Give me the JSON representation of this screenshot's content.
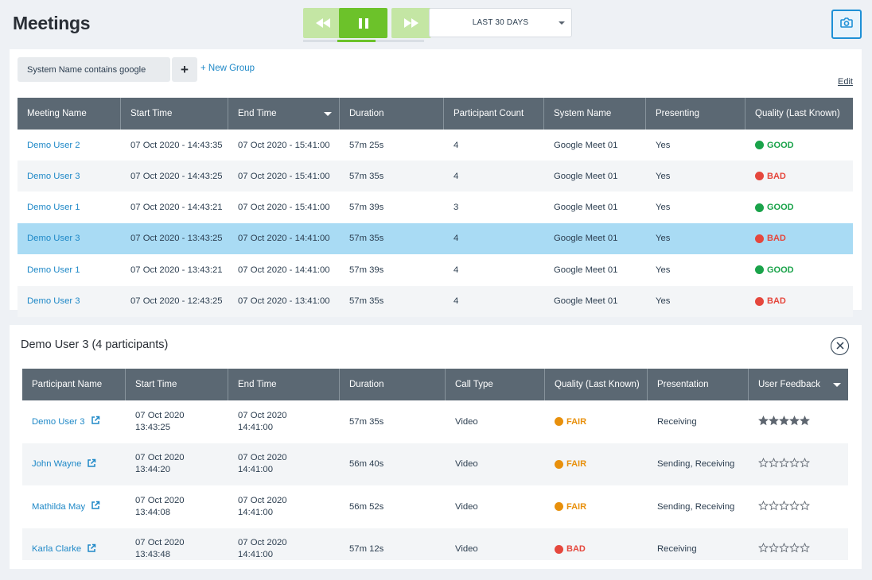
{
  "header": {
    "title": "Meetings",
    "date_range": "LAST 30 DAYS",
    "playback_progress": 0.6
  },
  "colors": {
    "accent_green": "#6cc22a",
    "link_blue": "#1e88c7",
    "header_gray": "#5b6873",
    "good": "#1aa34a",
    "bad": "#e5473d",
    "fair": "#e8900c",
    "selected_row": "#a9dbf4"
  },
  "icons": [
    "rewind-icon",
    "pause-icon",
    "fast-forward-icon",
    "camera-icon",
    "close-icon",
    "external-link-icon",
    "star-icon"
  ],
  "filters": {
    "chip": "System Name contains google",
    "add_label": "+",
    "new_group": "+ New Group",
    "edit": "Edit"
  },
  "meetings": {
    "columns": [
      "Meeting Name",
      "Start Time",
      "End Time",
      "Duration",
      "Participant Count",
      "System Name",
      "Presenting",
      "Quality (Last Known)"
    ],
    "rows": [
      {
        "name": "Demo User 2",
        "start": "07 Oct 2020 - 14:43:35",
        "end": "07 Oct 2020 - 15:41:00",
        "duration": "57m 25s",
        "count": "4",
        "system": "Google Meet 01",
        "presenting": "Yes",
        "quality": "GOOD"
      },
      {
        "name": "Demo User 3",
        "start": "07 Oct 2020 - 14:43:25",
        "end": "07 Oct 2020 - 15:41:00",
        "duration": "57m 35s",
        "count": "4",
        "system": "Google Meet 01",
        "presenting": "Yes",
        "quality": "BAD"
      },
      {
        "name": "Demo User 1",
        "start": "07 Oct 2020 - 14:43:21",
        "end": "07 Oct 2020 - 15:41:00",
        "duration": "57m 39s",
        "count": "3",
        "system": "Google Meet 01",
        "presenting": "Yes",
        "quality": "GOOD"
      },
      {
        "name": "Demo User 3",
        "start": "07 Oct 2020 - 13:43:25",
        "end": "07 Oct 2020 - 14:41:00",
        "duration": "57m 35s",
        "count": "4",
        "system": "Google Meet 01",
        "presenting": "Yes",
        "quality": "BAD"
      },
      {
        "name": "Demo User 1",
        "start": "07 Oct 2020 - 13:43:21",
        "end": "07 Oct 2020 - 14:41:00",
        "duration": "57m 39s",
        "count": "4",
        "system": "Google Meet 01",
        "presenting": "Yes",
        "quality": "GOOD"
      },
      {
        "name": "Demo User 3",
        "start": "07 Oct 2020 - 12:43:25",
        "end": "07 Oct 2020 - 13:41:00",
        "duration": "57m 35s",
        "count": "4",
        "system": "Google Meet 01",
        "presenting": "Yes",
        "quality": "BAD"
      }
    ],
    "selected_index": 3
  },
  "detail": {
    "title": "Demo User 3 (4 participants)",
    "columns": [
      "Participant Name",
      "Start Time",
      "End Time",
      "Duration",
      "Call Type",
      "Quality (Last Known)",
      "Presentation",
      "User Feedback"
    ],
    "rows": [
      {
        "name": "Demo User 3",
        "start_date": "07 Oct 2020",
        "start_time": "13:43:25",
        "end_date": "07 Oct 2020",
        "end_time": "14:41:00",
        "duration": "57m 35s",
        "call_type": "Video",
        "quality": "FAIR",
        "presentation": "Receiving",
        "feedback_stars": 5
      },
      {
        "name": "John Wayne",
        "start_date": "07 Oct 2020",
        "start_time": "13:44:20",
        "end_date": "07 Oct 2020",
        "end_time": "14:41:00",
        "duration": "56m 40s",
        "call_type": "Video",
        "quality": "FAIR",
        "presentation": "Sending, Receiving",
        "feedback_stars": 0
      },
      {
        "name": "Mathilda May",
        "start_date": "07 Oct 2020",
        "start_time": "13:44:08",
        "end_date": "07 Oct 2020",
        "end_time": "14:41:00",
        "duration": "56m 52s",
        "call_type": "Video",
        "quality": "FAIR",
        "presentation": "Sending, Receiving",
        "feedback_stars": 0
      },
      {
        "name": "Karla Clarke",
        "start_date": "07 Oct 2020",
        "start_time": "13:43:48",
        "end_date": "07 Oct 2020",
        "end_time": "14:41:00",
        "duration": "57m 12s",
        "call_type": "Video",
        "quality": "BAD",
        "presentation": "Receiving",
        "feedback_stars": 0
      }
    ]
  }
}
